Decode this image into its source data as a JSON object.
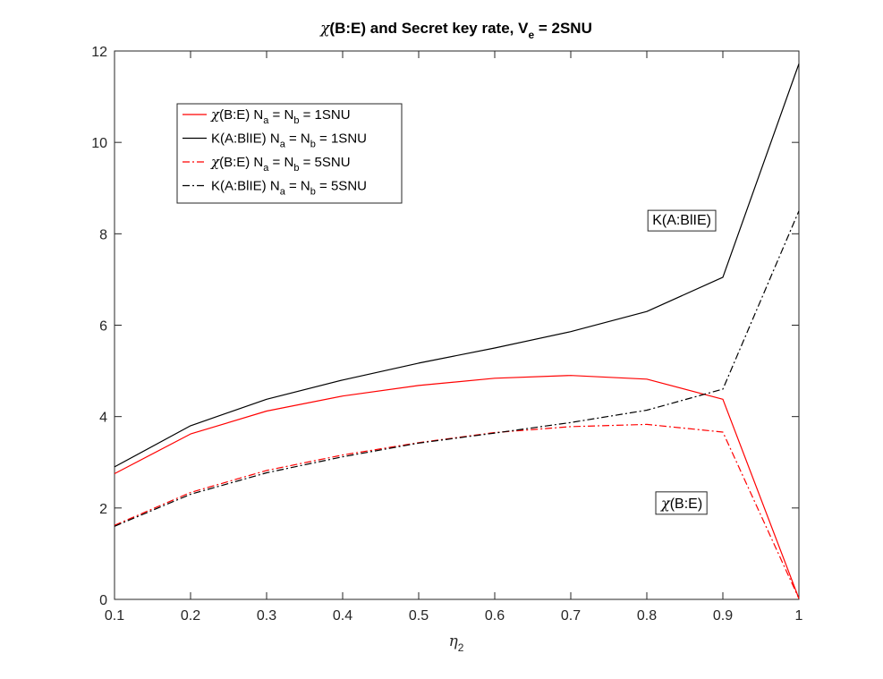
{
  "chart_data": {
    "type": "line",
    "title": {
      "symbol": "χ",
      "main": "(B:E) and Secret key rate, V",
      "sub": "e",
      "tail": " = 2SNU"
    },
    "xlabel": {
      "symbol": "η",
      "sub": "2"
    },
    "ylabel": "",
    "xlim": [
      0.1,
      1
    ],
    "ylim": [
      0,
      12
    ],
    "x_ticks": [
      "0.1",
      "0.2",
      "0.3",
      "0.4",
      "0.5",
      "0.6",
      "0.7",
      "0.8",
      "0.9",
      "1"
    ],
    "y_ticks": [
      "0",
      "2",
      "4",
      "6",
      "8",
      "10",
      "12"
    ],
    "x": [
      0.1,
      0.2,
      0.3,
      0.4,
      0.5,
      0.6,
      0.7,
      0.8,
      0.9,
      1.0
    ],
    "grid": false,
    "legend_position": "top-left",
    "series": [
      {
        "legend": {
          "symbol": "χ",
          "pre": "(B:E) N",
          "sub1": "a",
          "mid": " = N",
          "sub2": "b",
          "post": " = 1SNU"
        },
        "color": "#ff0000",
        "style": "solid",
        "values": [
          2.75,
          3.62,
          4.12,
          4.45,
          4.68,
          4.84,
          4.9,
          4.82,
          4.38,
          0.02
        ]
      },
      {
        "legend": {
          "symbol": "",
          "pre": "K(A:BlIE) N",
          "sub1": "a",
          "mid": " = N",
          "sub2": "b",
          "post": " = 1SNU"
        },
        "color": "#000000",
        "style": "solid",
        "values": [
          2.9,
          3.8,
          4.38,
          4.8,
          5.17,
          5.5,
          5.86,
          6.3,
          7.05,
          11.72
        ]
      },
      {
        "legend": {
          "symbol": "χ",
          "pre": "(B:E) N",
          "sub1": "a",
          "mid": " = N",
          "sub2": "b",
          "post": " = 5SNU"
        },
        "color": "#ff0000",
        "style": "dashdot",
        "values": [
          1.62,
          2.34,
          2.82,
          3.16,
          3.43,
          3.65,
          3.78,
          3.83,
          3.66,
          0.02
        ]
      },
      {
        "legend": {
          "symbol": "",
          "pre": "K(A:BlIE) N",
          "sub1": "a",
          "mid": " = N",
          "sub2": "b",
          "post": " = 5SNU"
        },
        "color": "#000000",
        "style": "dashdot",
        "values": [
          1.6,
          2.3,
          2.77,
          3.12,
          3.42,
          3.64,
          3.87,
          4.14,
          4.6,
          8.5
        ]
      }
    ],
    "annotations": [
      {
        "symbol": "",
        "text": "K(A:BlIE)",
        "x": 0.846,
        "y": 8.2
      },
      {
        "symbol": "χ",
        "text": "(B:E)",
        "x": 0.846,
        "y": 2.0
      }
    ]
  }
}
